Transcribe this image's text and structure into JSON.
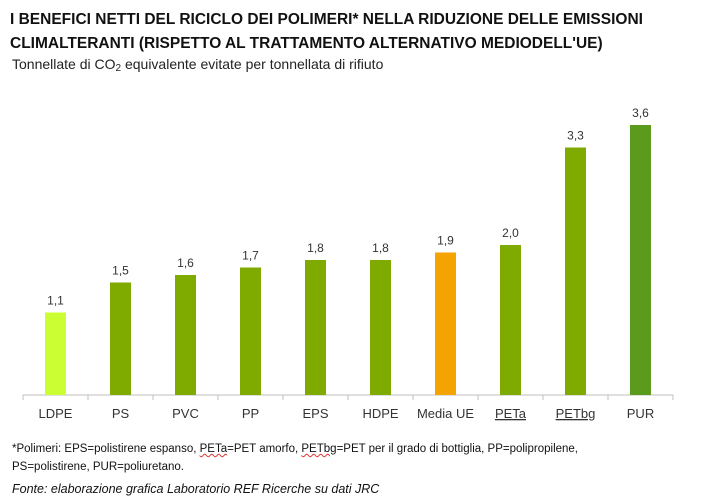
{
  "title": "I BENEFICI NETTI DEL RICICLO DEI POLIMERI* NELLA RIDUZIONE DELLE EMISSIONI CLIMALTERANTI (RISPETTO AL TRATTAMENTO ALTERNATIVO MEDIODELL'UE)",
  "subtitle_before": "Tonnellate di CO",
  "subtitle_sub": "2",
  "subtitle_after": " equivalente evitate per tonnellata di rifiuto",
  "note": {
    "line1_a": "*Polimeri: EPS=polistirene espanso, ",
    "line1_peta": "PETa",
    "line1_b": "=PET amorfo, ",
    "line1_petbg": "PETbg",
    "line1_c": "=PET per il grado di bottiglia, PP=polipropilene,",
    "line2": "PS=polistirene, PUR=poliuretano."
  },
  "source": "Fonte: elaborazione grafica Laboratorio REF Ricerche su dati JRC",
  "chart_data": {
    "type": "bar",
    "categories": [
      "LDPE",
      "PS",
      "PVC",
      "PP",
      "EPS",
      "HDPE",
      "Media UE",
      "PETa",
      "PETbg",
      "PUR"
    ],
    "values": [
      1.1,
      1.5,
      1.6,
      1.7,
      1.8,
      1.8,
      1.9,
      2.0,
      3.3,
      3.6
    ],
    "value_labels": [
      "1,1",
      "1,5",
      "1,6",
      "1,7",
      "1,8",
      "1,8",
      "1,9",
      "2,0",
      "3,3",
      "3,6"
    ],
    "colors": [
      "#ccff33",
      "#7faa00",
      "#7faa00",
      "#7faa00",
      "#7faa00",
      "#7faa00",
      "#f4a300",
      "#7faa00",
      "#7faa00",
      "#5c9a1e"
    ],
    "underlined_categories": [
      "PETa",
      "PETbg"
    ],
    "ylim": [
      0,
      3.6
    ],
    "grid": false,
    "legend": "none"
  }
}
